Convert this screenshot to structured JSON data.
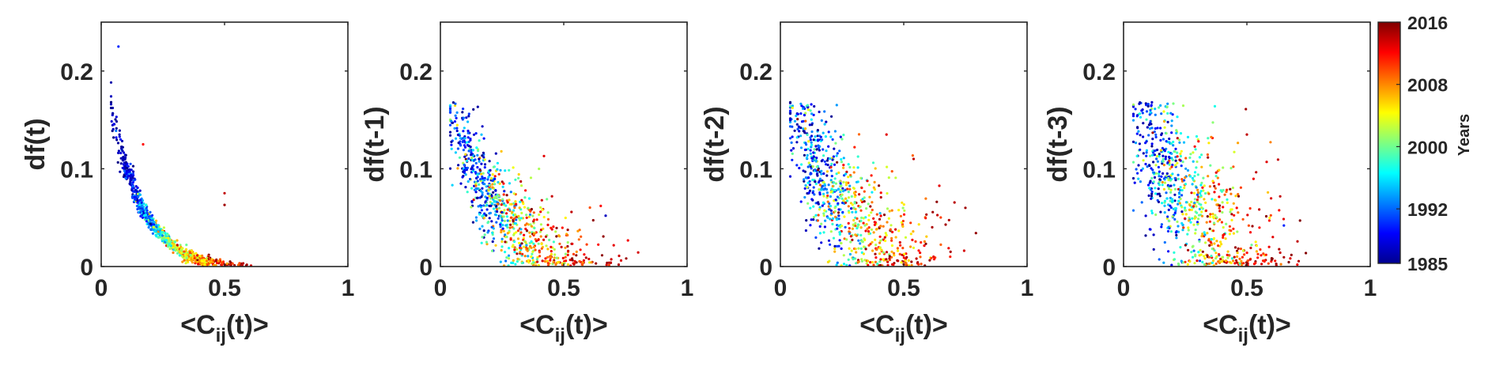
{
  "chart_data": [
    {
      "type": "scatter",
      "title": "",
      "xlabel_main": "<C",
      "xlabel_sub": "ij",
      "xlabel_rest": "(t)>",
      "ylabel": "df(t)",
      "xlim": [
        0,
        1
      ],
      "ylim": [
        0,
        0.25
      ],
      "xticks": [
        0,
        0.5,
        1
      ],
      "xtick_labels": [
        "0",
        "0.5",
        "1"
      ],
      "yticks": [
        0,
        0.1,
        0.2
      ],
      "ytick_labels": [
        "0",
        "0.1",
        "0.2"
      ],
      "pattern": "tight-decay",
      "seed": 11,
      "n_points": 900,
      "outliers": [
        {
          "x": 0.07,
          "y": 0.225,
          "year": 1990
        },
        {
          "x": 0.5,
          "y": 0.075,
          "year": 2014
        },
        {
          "x": 0.5,
          "y": 0.063,
          "year": 2015
        },
        {
          "x": 0.17,
          "y": 0.125,
          "year": 2012
        }
      ]
    },
    {
      "type": "scatter",
      "title": "",
      "xlabel_main": "<C",
      "xlabel_sub": "ij",
      "xlabel_rest": "(t)>",
      "ylabel": "df(t-1)",
      "xlim": [
        0,
        1
      ],
      "ylim": [
        0,
        0.25
      ],
      "xticks": [
        0,
        0.5,
        1
      ],
      "xtick_labels": [
        "0",
        "0.5",
        "1"
      ],
      "yticks": [
        0,
        0.1,
        0.2
      ],
      "ytick_labels": [
        "0",
        "0.1",
        "0.2"
      ],
      "pattern": "spread-1",
      "seed": 23,
      "n_points": 800,
      "outliers": [
        {
          "x": 0.42,
          "y": 0.113,
          "year": 2013
        },
        {
          "x": 0.67,
          "y": 0.052,
          "year": 1987
        },
        {
          "x": 0.65,
          "y": 0.062,
          "year": 2012
        }
      ]
    },
    {
      "type": "scatter",
      "title": "",
      "xlabel_main": "<C",
      "xlabel_sub": "ij",
      "xlabel_rest": "(t)>",
      "ylabel": "df(t-2)",
      "xlim": [
        0,
        1
      ],
      "ylim": [
        0,
        0.25
      ],
      "xticks": [
        0,
        0.5,
        1
      ],
      "xtick_labels": [
        "0",
        "0.5",
        "1"
      ],
      "yticks": [
        0,
        0.1,
        0.2
      ],
      "ytick_labels": [
        "0",
        "0.1",
        "0.2"
      ],
      "pattern": "spread-2",
      "seed": 37,
      "n_points": 800,
      "outliers": [
        {
          "x": 0.43,
          "y": 0.135,
          "year": 2013
        },
        {
          "x": 0.54,
          "y": 0.11,
          "year": 2014
        },
        {
          "x": 0.75,
          "y": 0.06,
          "year": 2015
        }
      ]
    },
    {
      "type": "scatter",
      "title": "",
      "xlabel_main": "<C",
      "xlabel_sub": "ij",
      "xlabel_rest": "(t)>",
      "ylabel": "df(t-3)",
      "xlim": [
        0,
        1
      ],
      "ylim": [
        0,
        0.25
      ],
      "xticks": [
        0,
        0.5,
        1
      ],
      "xtick_labels": [
        "0",
        "0.5",
        "1"
      ],
      "yticks": [
        0,
        0.1,
        0.2
      ],
      "ytick_labels": [
        "0",
        "0.1",
        "0.2"
      ],
      "pattern": "spread-3",
      "seed": 51,
      "n_points": 800,
      "outliers": [
        {
          "x": 0.5,
          "y": 0.135,
          "year": 2014
        },
        {
          "x": 0.58,
          "y": 0.107,
          "year": 2013
        },
        {
          "x": 0.65,
          "y": 0.042,
          "year": 1990
        }
      ]
    }
  ],
  "colorbar": {
    "label": "Years",
    "min_year": 1985,
    "max_year": 2016,
    "ticks": [
      1985,
      1992,
      2000,
      2008,
      2016
    ],
    "tick_labels": [
      "1985",
      "1992",
      "2000",
      "2008",
      "2016"
    ],
    "colormap": "jet"
  }
}
